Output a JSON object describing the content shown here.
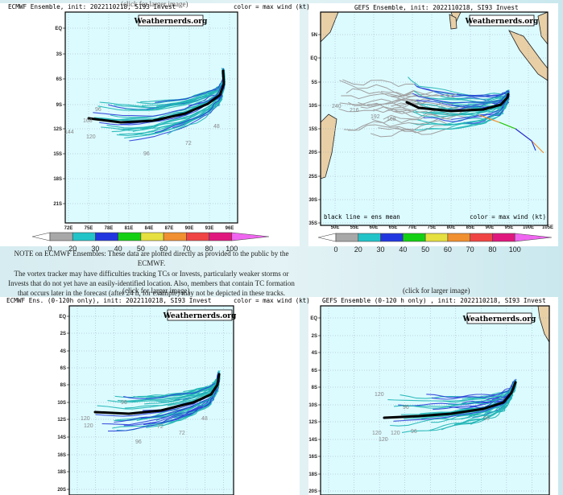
{
  "top_caption": "(click for larger image)",
  "note": {
    "lines": [
      "NOTE on ECMWF Ensembles: These data are plotted directly as provided to the public by the ECMWF.",
      "The vortex tracker may have difficulties tracking TCs or Invests, particularly weaker storms or",
      "Invests that do not yet have an easily-identified location. Also, members that contain TC formation",
      "that occurs later in the forecast (after 24 h, for example) may not be depicted in these tracks."
    ]
  },
  "click_left": "(click for larger image)",
  "click_right": "(click for larger image)",
  "colorbar": {
    "labels": [
      "0",
      "20",
      "30",
      "40",
      "50",
      "60",
      "70",
      "80",
      "100"
    ],
    "colors": [
      "#a8a8a8",
      "#22c4c8",
      "#2236e0",
      "#14d014",
      "#e6e040",
      "#f09030",
      "#f04444",
      "#e0187e",
      "#f066f0"
    ]
  },
  "track_colors": {
    "teal": "#1fb5b5",
    "blue": "#2a3ed8",
    "gray": "#a0a0a0",
    "mean": "#000000"
  },
  "panels": [
    {
      "title": "ECMWF Ensemble, init: 2022110218, SI93 Invest",
      "color_label": "color = max wind (kt)",
      "watermark": "Weathernerds.org",
      "lat_labels": [
        "EQ",
        "3S",
        "6S",
        "9S",
        "12S",
        "15S",
        "18S",
        "21S"
      ],
      "lon_labels": [
        "72E",
        "75E",
        "78E",
        "81E",
        "84E",
        "87E",
        "90E",
        "93E",
        "96E"
      ],
      "hour_labels": [
        "168",
        "144",
        "120",
        "96",
        "72",
        "48",
        "96"
      ]
    },
    {
      "title": "GEFS Ensemble, init: 2022110218, SI93 Invest",
      "color_label": "color = max wind (kt)",
      "mean_label": "black line = ens mean",
      "watermark": "Weathernerds.org",
      "lat_labels": [
        "5N",
        "EQ",
        "5S",
        "10S",
        "15S",
        "20S",
        "25S",
        "30S",
        "35S"
      ],
      "lon_labels": [
        "50E",
        "55E",
        "60E",
        "65E",
        "70E",
        "75E",
        "80E",
        "85E",
        "90E",
        "95E",
        "100E",
        "105E"
      ],
      "hour_labels": [
        "240",
        "216",
        "192",
        "168"
      ]
    },
    {
      "title": "ECMWF Ens. (0-120h only), init: 2022110218, SI93 Invest",
      "color_label": "color = max wind (kt)",
      "watermark": "Weathernerds.org",
      "lat_labels": [
        "EQ",
        "2S",
        "4S",
        "6S",
        "8S",
        "10S",
        "12S",
        "14S",
        "16S",
        "18S",
        "20S"
      ],
      "hour_labels": [
        "120",
        "120",
        "96",
        "96",
        "72",
        "72",
        "48"
      ]
    },
    {
      "title": "GEFS Ensemble (0-120 h only) , init: 2022110218, SI93 Invest",
      "watermark": "Weathernerds.org",
      "lat_labels": [
        "EQ",
        "2S",
        "4S",
        "6S",
        "8S",
        "10S",
        "12S",
        "14S",
        "16S",
        "18S",
        "20S"
      ],
      "hour_labels": [
        "120",
        "120",
        "120",
        "120",
        "96",
        "96",
        "96"
      ]
    }
  ]
}
